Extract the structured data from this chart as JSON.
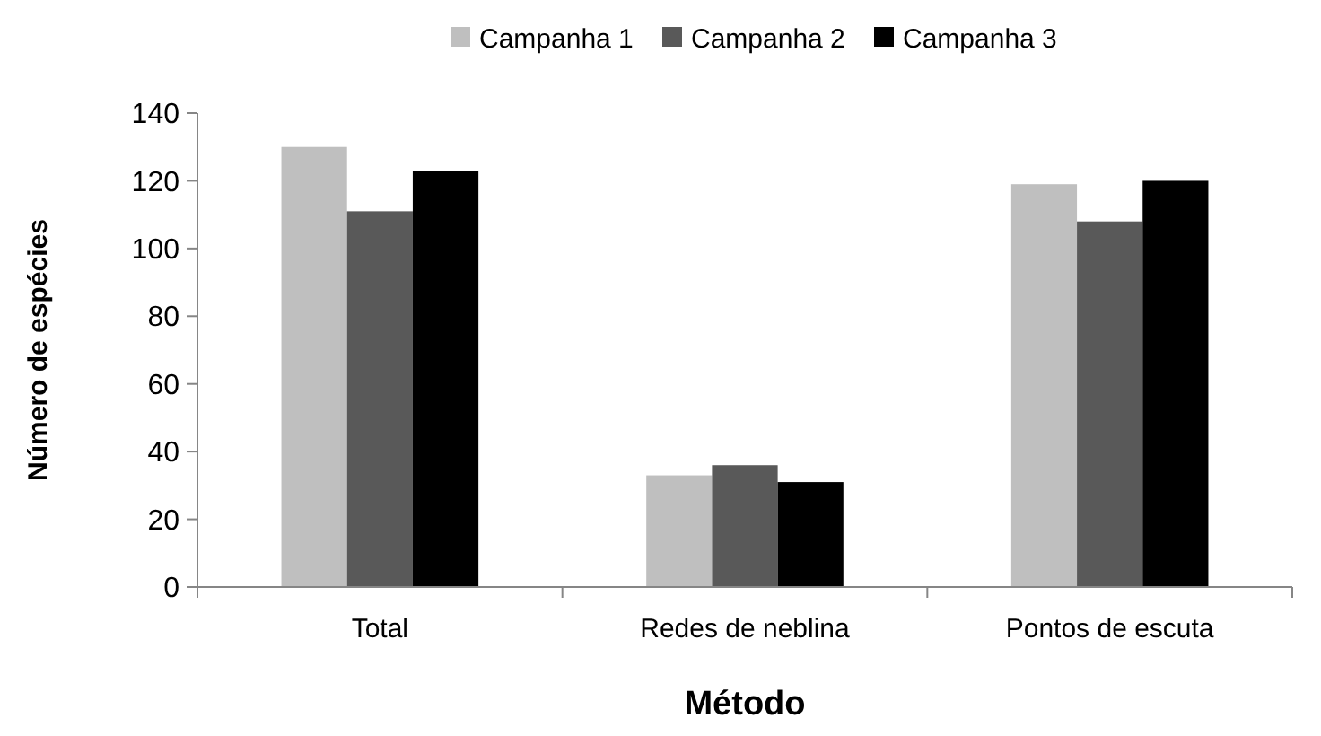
{
  "chart_data": {
    "type": "bar",
    "xlabel": "Método",
    "ylabel": "Número de espécies",
    "categories": [
      "Total",
      "Redes de neblina",
      "Pontos de escuta"
    ],
    "series": [
      {
        "name": "Campanha 1",
        "color": "#bfbfbf",
        "values": [
          130,
          33,
          119
        ]
      },
      {
        "name": "Campanha 2",
        "color": "#595959",
        "values": [
          111,
          36,
          108
        ]
      },
      {
        "name": "Campanha 3",
        "color": "#000000",
        "values": [
          123,
          31,
          120
        ]
      }
    ],
    "ylim": [
      0,
      140
    ],
    "yticks": [
      0,
      20,
      40,
      60,
      80,
      100,
      120,
      140
    ],
    "legend": "top",
    "grid": false
  }
}
